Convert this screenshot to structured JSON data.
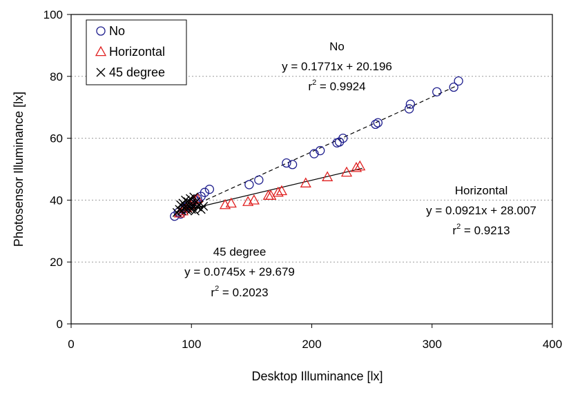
{
  "chart_data": {
    "type": "scatter",
    "xlabel": "Desktop Illuminance [lx]",
    "ylabel": "Photosensor Illuminance  [lx]",
    "xlim": [
      0,
      400
    ],
    "ylim": [
      0,
      100
    ],
    "x_ticks": [
      0,
      100,
      200,
      300,
      400
    ],
    "y_ticks": [
      0,
      20,
      40,
      60,
      80,
      100
    ],
    "grid": "horizontal dotted",
    "legend_position": "top-left",
    "series": [
      {
        "name": "No",
        "marker": "circle",
        "color": "#1c1c8c",
        "x": [
          86,
          89,
          91,
          93,
          95,
          97,
          99,
          101,
          103,
          105,
          108,
          111,
          115,
          148,
          156,
          179,
          184,
          202,
          207,
          221,
          223,
          226,
          253,
          255,
          281,
          282,
          304,
          318,
          322
        ],
        "y": [
          34.8,
          36.0,
          35.5,
          37.0,
          37.5,
          38.2,
          38.8,
          39.5,
          40.0,
          40.5,
          41.2,
          42.5,
          43.5,
          45.0,
          46.5,
          52.0,
          51.5,
          55.0,
          56.0,
          58.5,
          58.8,
          60.0,
          64.5,
          65.0,
          69.5,
          71.0,
          75.0,
          76.5,
          78.5
        ],
        "trend": {
          "slope": 0.1771,
          "intercept": 20.196,
          "x_range": [
            86,
            322
          ],
          "style": "dashed"
        }
      },
      {
        "name": "Horizontal",
        "marker": "triangle",
        "color": "#e02020",
        "x": [
          90,
          93,
          96,
          99,
          102,
          105,
          128,
          133,
          147,
          152,
          164,
          166,
          172,
          175,
          195,
          213,
          229,
          237,
          240
        ],
        "y": [
          35.8,
          36.5,
          37.5,
          38.5,
          40.0,
          40.5,
          38.5,
          39.0,
          39.5,
          40.0,
          41.5,
          41.5,
          42.5,
          43.0,
          45.5,
          47.5,
          49.0,
          50.5,
          51.0
        ],
        "trend": {
          "slope": 0.0921,
          "intercept": 28.007,
          "x_range": [
            88,
            242
          ],
          "style": "solid"
        }
      },
      {
        "name": "45 degree",
        "marker": "x",
        "color": "#000000",
        "x": [
          88,
          90,
          91,
          92,
          93,
          94,
          95,
          95,
          96,
          97,
          97,
          98,
          99,
          100,
          100,
          101,
          102,
          103,
          104,
          105,
          106,
          108,
          110
        ],
        "y": [
          36.0,
          37.0,
          38.5,
          36.5,
          39.0,
          37.5,
          38.0,
          40.0,
          36.8,
          39.5,
          37.2,
          38.2,
          40.5,
          37.0,
          39.0,
          38.0,
          41.0,
          36.5,
          39.5,
          37.8,
          38.5,
          37.0,
          38.0
        ],
        "trend": {
          "slope": 0.0745,
          "intercept": 29.679,
          "x_range": [
            88,
            112
          ],
          "style": "solid"
        }
      }
    ],
    "annotations": [
      {
        "id": "no",
        "lines": [
          "No",
          "y = 0.1771x + 20.196",
          "r^2 = 0.9924"
        ],
        "r_base": "r",
        "r_sup": "2",
        "r_rest": " = 0.9924"
      },
      {
        "id": "horizontal",
        "lines": [
          "Horizontal",
          "y = 0.0921x + 28.007",
          "r^2 = 0.9213"
        ],
        "r_base": "r",
        "r_sup": "2",
        "r_rest": " = 0.9213"
      },
      {
        "id": "deg45",
        "lines": [
          "45 degree",
          "y = 0.0745x + 29.679",
          "r^2 = 0.2023"
        ],
        "r_base": "r",
        "r_sup": "2",
        "r_rest": " = 0.2023"
      }
    ]
  }
}
